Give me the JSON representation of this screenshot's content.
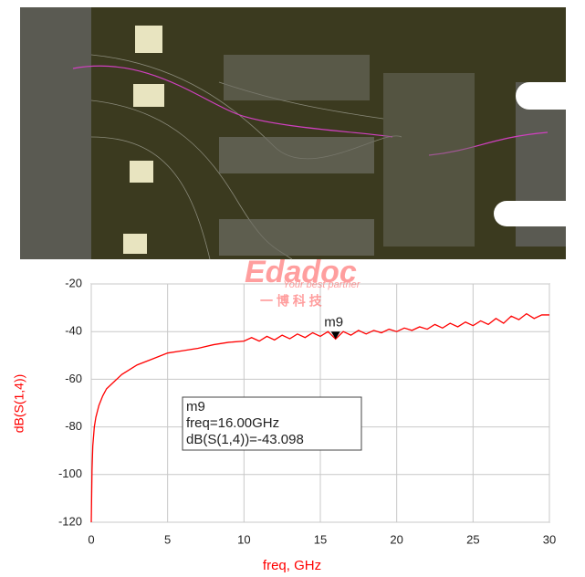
{
  "chart_data": {
    "type": "line",
    "watermark": {
      "brand": "Edadoc",
      "slogan": "Your best partner",
      "chinese": "一 博 科 技"
    },
    "x_label": "freq, GHz",
    "y_label": "dB(S(1,4))",
    "xlim": [
      0,
      30
    ],
    "xticks": [
      0,
      5,
      10,
      15,
      20,
      25,
      30
    ],
    "ylim": [
      -120,
      -20
    ],
    "yticks": [
      -120,
      -100,
      -80,
      -60,
      -40,
      -20
    ],
    "grid": true,
    "series": [
      {
        "name": "dB(S(1,4))",
        "color": "#ff0000",
        "x": [
          0,
          0.05,
          0.1,
          0.2,
          0.3,
          0.5,
          0.75,
          1,
          1.5,
          2,
          2.5,
          3,
          4,
          5,
          6,
          7,
          8,
          9,
          10,
          10.5,
          11,
          11.5,
          12,
          12.5,
          13,
          13.5,
          14,
          14.5,
          15,
          15.5,
          16,
          16.5,
          17,
          17.5,
          18,
          18.5,
          19,
          19.5,
          20,
          20.5,
          21,
          21.5,
          22,
          22.5,
          23,
          23.5,
          24,
          24.5,
          25,
          25.5,
          26,
          26.5,
          27,
          27.5,
          28,
          28.5,
          29,
          29.5,
          30
        ],
        "values": [
          -120,
          -98,
          -88,
          -80,
          -76,
          -71,
          -67,
          -64,
          -61,
          -58,
          -56,
          -54,
          -51.5,
          -49,
          -48,
          -47,
          -45.5,
          -44.5,
          -44,
          -42.5,
          -44,
          -42,
          -43.5,
          -41.5,
          -43,
          -41,
          -42.5,
          -40.5,
          -42,
          -40,
          -43.1,
          -40,
          -41.5,
          -39.5,
          -41,
          -39.5,
          -40.5,
          -39,
          -40,
          -38.5,
          -39.5,
          -38,
          -39,
          -37,
          -38.5,
          -36.5,
          -38,
          -36,
          -37.5,
          -35.5,
          -37,
          -34.5,
          -36.5,
          -33.5,
          -35,
          -32.5,
          -34.5,
          -33,
          -33
        ]
      }
    ],
    "marker": {
      "name": "m9",
      "x": 16,
      "y": -43.098,
      "lines": [
        "m9",
        "freq=16.00GHz",
        "dB(S(1,4))=-43.098"
      ]
    }
  }
}
